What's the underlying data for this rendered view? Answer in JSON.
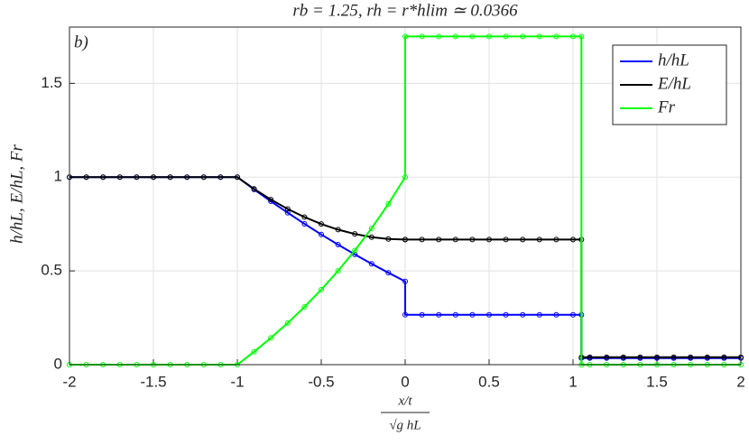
{
  "chart_data": {
    "type": "line",
    "title": "rb = 1.25,    rh = r*hlim ≃ 0.0366",
    "annotation": "b)",
    "y_label": "h/hL,   E/hL,   Fr",
    "x_label": {
      "numerator": "x/t",
      "denominator": "√g hL"
    },
    "x": [
      -2,
      -1.9,
      -1.8,
      -1.7,
      -1.6,
      -1.5,
      -1.4,
      -1.3,
      -1.2,
      -1.1,
      -1,
      -0.9,
      -0.8,
      -0.7,
      -0.6,
      -0.5,
      -0.4,
      -0.3,
      -0.2,
      -0.1,
      0,
      0,
      0.1,
      0.2,
      0.3,
      0.4,
      0.5,
      0.6,
      0.7,
      0.8,
      0.9,
      1,
      1.05,
      1.05,
      1.1,
      1.2,
      1.3,
      1.4,
      1.5,
      1.6,
      1.7,
      1.8,
      1.9,
      2
    ],
    "series": [
      {
        "name": "h/hL",
        "color": "#0000ff",
        "values": [
          1,
          1,
          1,
          1,
          1,
          1,
          1,
          1,
          1,
          1,
          1,
          0.934,
          0.871,
          0.81,
          0.751,
          0.694,
          0.64,
          0.588,
          0.538,
          0.49,
          0.444,
          0.266,
          0.266,
          0.266,
          0.266,
          0.266,
          0.266,
          0.266,
          0.266,
          0.266,
          0.266,
          0.266,
          0.266,
          0.035,
          0.035,
          0.035,
          0.035,
          0.035,
          0.035,
          0.035,
          0.035,
          0.035,
          0.035,
          0.035
        ]
      },
      {
        "name": "E/hL",
        "color": "#000000",
        "values": [
          1,
          1,
          1,
          1,
          1,
          1,
          1,
          1,
          1,
          1,
          1,
          0.937,
          0.88,
          0.83,
          0.787,
          0.75,
          0.72,
          0.697,
          0.68,
          0.67,
          0.667,
          0.667,
          0.667,
          0.667,
          0.667,
          0.667,
          0.667,
          0.667,
          0.667,
          0.667,
          0.667,
          0.667,
          0.667,
          0.04,
          0.04,
          0.04,
          0.04,
          0.04,
          0.04,
          0.04,
          0.04,
          0.04,
          0.04,
          0.04
        ]
      },
      {
        "name": "Fr",
        "color": "#00ff00",
        "values": [
          0,
          0,
          0,
          0,
          0,
          0,
          0,
          0,
          0,
          0,
          0,
          0.069,
          0.143,
          0.222,
          0.308,
          0.4,
          0.5,
          0.609,
          0.727,
          0.857,
          1,
          1.75,
          1.75,
          1.75,
          1.75,
          1.75,
          1.75,
          1.75,
          1.75,
          1.75,
          1.75,
          1.75,
          1.75,
          0,
          0,
          0,
          0,
          0,
          0,
          0,
          0,
          0,
          0,
          0
        ]
      }
    ],
    "xlim": [
      -2,
      2
    ],
    "xticks": [
      -2,
      -1.5,
      -1,
      -0.5,
      0,
      0.5,
      1,
      1.5,
      2
    ],
    "ylim": [
      0,
      1.8
    ],
    "yticks": [
      0,
      0.5,
      1,
      1.5
    ],
    "grid": true,
    "legend": "upper-right"
  }
}
